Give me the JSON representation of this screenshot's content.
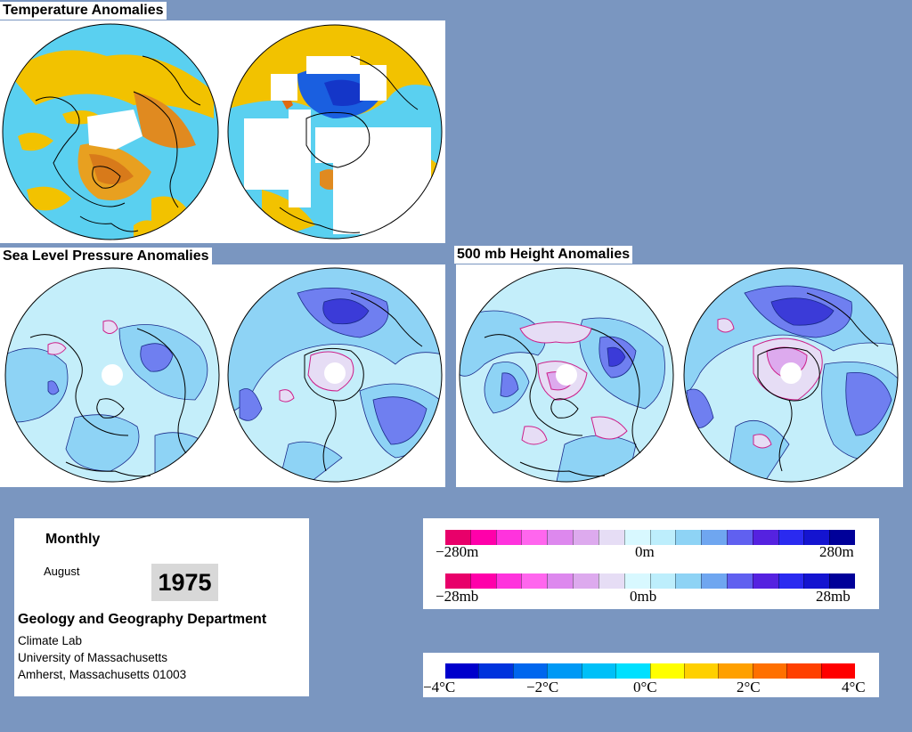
{
  "panels": {
    "temperature": {
      "title": "Temperature Anomalies"
    },
    "slp": {
      "title": "Sea Level Pressure Anomalies"
    },
    "height500": {
      "title": "500 mb Height Anomalies"
    }
  },
  "info": {
    "period": "Monthly",
    "month": "August",
    "year": "1975",
    "department": "Geology and Geography Department",
    "lab": "Climate Lab",
    "university": "University of Massachusetts",
    "address": "Amherst, Massachusetts 01003"
  },
  "legends": {
    "height_scale": {
      "min_label": "−280m",
      "mid_label": "0m",
      "max_label": "280m"
    },
    "pressure_scale": {
      "min_label": "−28mb",
      "mid_label": "0mb",
      "max_label": "28mb"
    },
    "temperature_scale": {
      "labels": [
        "−4°C",
        "−2°C",
        "0°C",
        "2°C",
        "4°C"
      ]
    }
  },
  "colors": {
    "background": "#7a96c0",
    "pressure_height_scale": [
      "#e8006a",
      "#ff00aa",
      "#ff33dd",
      "#ff66ee",
      "#dd88ee",
      "#ddaaee",
      "#e6ddf5",
      "#d8f8ff",
      "#bdeefc",
      "#8ed3f5",
      "#6fa6f0",
      "#6060f0",
      "#5522e0",
      "#2a2af0",
      "#1414d0",
      "#000099"
    ],
    "temperature_scale": [
      "#0000cc",
      "#0033dd",
      "#0066ee",
      "#0099f5",
      "#00c0f8",
      "#00e0ff",
      "#ffff00",
      "#ffd000",
      "#ffa000",
      "#ff7000",
      "#ff4000",
      "#ff0000"
    ],
    "globe_fill_slp": "#c4eefa",
    "globe_fill_temp": "#5ad0f0"
  }
}
